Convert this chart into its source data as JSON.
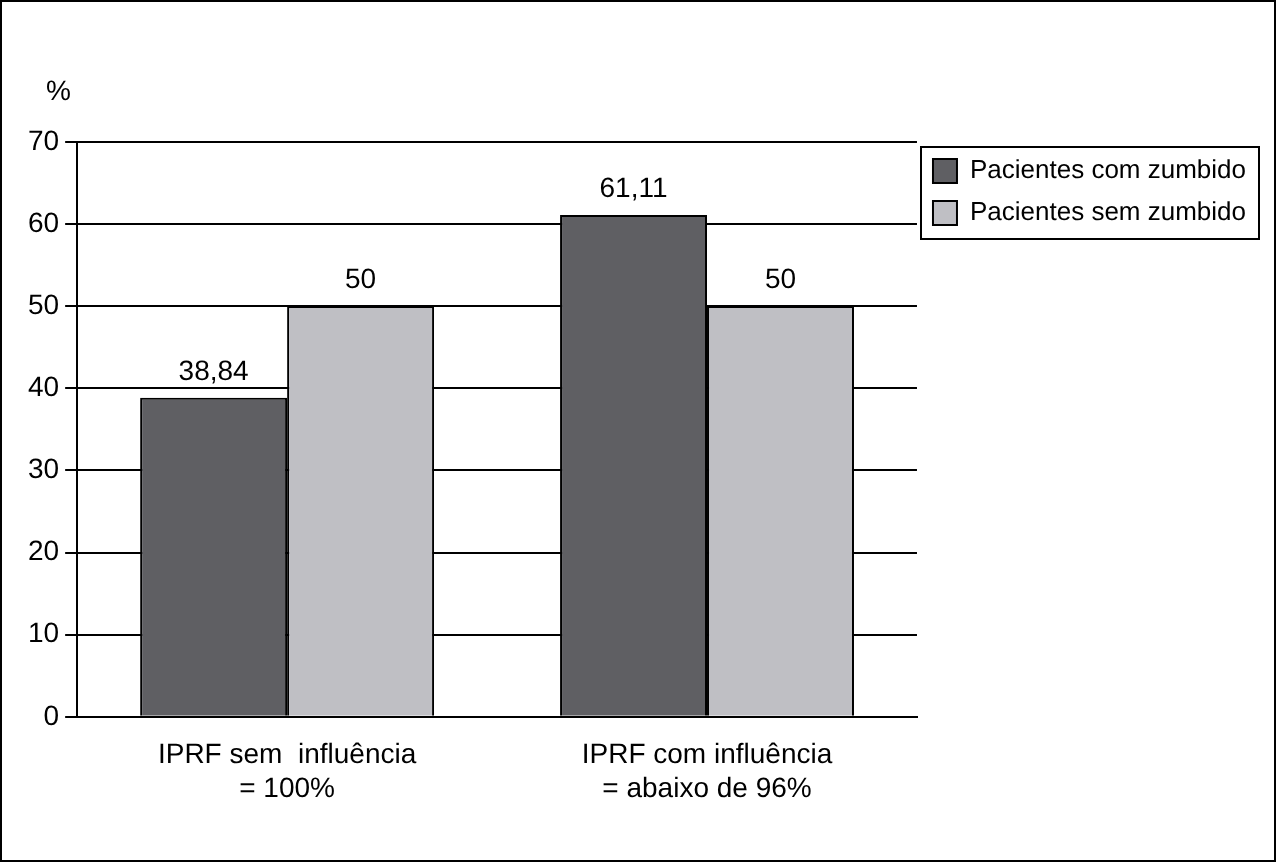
{
  "chart_data": {
    "type": "bar",
    "ylabel": "%",
    "categories": [
      "IPRF sem  influência\n= 100%",
      "IPRF com influência\n= abaixo de 96%"
    ],
    "series": [
      {
        "name": "Pacientes com zumbido",
        "color": "#5f5f63",
        "values": [
          38.84,
          61.11
        ],
        "value_labels": [
          "38,84",
          "61,11"
        ]
      },
      {
        "name": "Pacientes sem zumbido",
        "color": "#bfbfc4",
        "values": [
          50,
          50
        ],
        "value_labels": [
          "50",
          "50"
        ]
      }
    ],
    "ylim": [
      0,
      70
    ],
    "yticks": [
      0,
      10,
      20,
      30,
      40,
      50,
      60,
      70
    ],
    "grid": "y",
    "legend": "top right"
  }
}
